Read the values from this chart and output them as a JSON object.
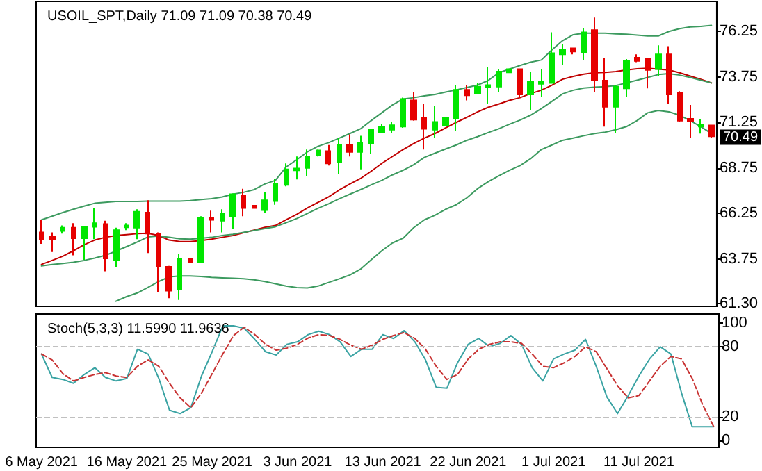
{
  "chart_data": [
    {
      "type": "candlestick",
      "title": "USOIL_SPT,Daily 71.09 71.09 70.38 70.49",
      "categories": [
        null,
        null,
        null,
        null,
        null,
        null,
        null,
        null,
        null,
        null,
        null,
        null,
        null,
        null,
        null,
        null,
        null,
        null,
        null,
        null,
        null,
        null,
        null,
        null,
        null,
        null,
        null,
        null,
        null,
        null,
        null,
        null,
        null,
        null,
        null,
        null,
        null,
        null,
        null,
        null,
        null,
        null,
        null,
        null,
        null,
        null,
        null,
        null,
        null,
        null,
        null,
        null,
        null,
        null,
        null,
        null,
        null,
        null,
        null,
        null,
        null,
        null,
        null,
        null
      ],
      "ohlc": [
        [
          65.21,
          65.9,
          64.58,
          64.84
        ],
        [
          64.96,
          65.21,
          64.13,
          64.84
        ],
        [
          65.29,
          65.59,
          65.14,
          65.47
        ],
        [
          65.47,
          65.72,
          63.95,
          64.89
        ],
        [
          64.89,
          65.54,
          63.7,
          65.54
        ],
        [
          65.52,
          66.55,
          64.84,
          65.72
        ],
        [
          65.67,
          65.85,
          63.07,
          63.78
        ],
        [
          63.7,
          65.47,
          63.32,
          65.34
        ],
        [
          65.49,
          65.72,
          65.34,
          65.59
        ],
        [
          65.47,
          66.48,
          64.84,
          66.35
        ],
        [
          66.3,
          66.98,
          64.08,
          65.14
        ],
        [
          65.14,
          65.21,
          61.93,
          63.32
        ],
        [
          63.32,
          63.37,
          61.6,
          62.01
        ],
        [
          62.06,
          64.03,
          61.5,
          63.78
        ],
        [
          63.78,
          63.78,
          63.57,
          63.57
        ],
        [
          63.57,
          66.1,
          63.57,
          66.02
        ],
        [
          66.02,
          66.4,
          65.21,
          65.9
        ],
        [
          65.85,
          66.48,
          65.21,
          66.22
        ],
        [
          66.1,
          67.36,
          65.42,
          67.31
        ],
        [
          67.23,
          67.61,
          66.1,
          66.55
        ],
        [
          66.68,
          66.68,
          66.55,
          66.55
        ],
        [
          66.43,
          67.41,
          66.3,
          66.98
        ],
        [
          66.93,
          68.17,
          66.73,
          67.87
        ],
        [
          67.82,
          69.0,
          67.74,
          68.67
        ],
        [
          68.62,
          69.38,
          68.12,
          68.72
        ],
        [
          68.75,
          69.76,
          68.3,
          69.38
        ],
        [
          69.43,
          69.76,
          69.38,
          69.71
        ],
        [
          69.68,
          70.01,
          68.88,
          69.0
        ],
        [
          69.05,
          70.39,
          68.42,
          70.01
        ],
        [
          70.01,
          70.59,
          69.38,
          69.63
        ],
        [
          69.63,
          70.52,
          68.67,
          70.14
        ],
        [
          70.09,
          70.9,
          69.51,
          70.85
        ],
        [
          70.72,
          71.15,
          70.69,
          71.02
        ],
        [
          70.85,
          71.28,
          70.69,
          71.1
        ],
        [
          71.02,
          72.61,
          70.95,
          72.54
        ],
        [
          72.46,
          72.92,
          71.35,
          71.4
        ],
        [
          71.53,
          72.29,
          69.76,
          70.9
        ],
        [
          70.85,
          72.16,
          70.39,
          71.28
        ],
        [
          71.1,
          71.53,
          71.1,
          71.53
        ],
        [
          71.45,
          73.3,
          70.77,
          73.04
        ],
        [
          73.04,
          73.3,
          72.46,
          72.74
        ],
        [
          72.84,
          73.42,
          72.79,
          73.22
        ],
        [
          73.17,
          74.31,
          72.29,
          73.3
        ],
        [
          73.22,
          74.18,
          72.92,
          74.05
        ],
        [
          74.0,
          74.18,
          74.0,
          74.18
        ],
        [
          74.18,
          74.18,
          72.61,
          72.79
        ],
        [
          72.79,
          74.05,
          71.91,
          73.47
        ],
        [
          73.37,
          74.18,
          72.66,
          73.47
        ],
        [
          73.42,
          76.2,
          73.42,
          75.06
        ],
        [
          74.99,
          75.57,
          74.43,
          75.24
        ],
        [
          75.32,
          75.32,
          74.99,
          75.14
        ],
        [
          75.11,
          76.45,
          74.68,
          76.2
        ],
        [
          76.33,
          77.01,
          72.92,
          73.55
        ],
        [
          73.55,
          74.81,
          71.02,
          72.11
        ],
        [
          72.11,
          73.3,
          70.69,
          73.22
        ],
        [
          73.12,
          74.73,
          72.66,
          74.63
        ],
        [
          74.81,
          74.99,
          74.56,
          74.63
        ],
        [
          74.73,
          74.81,
          73.12,
          74.13
        ],
        [
          74.18,
          75.49,
          73.8,
          74.99
        ],
        [
          74.99,
          75.44,
          72.29,
          72.79
        ],
        [
          72.87,
          72.97,
          71.28,
          71.35
        ],
        [
          71.45,
          72.21,
          70.39,
          71.33
        ],
        [
          71.02,
          71.45,
          70.64,
          71.15
        ],
        [
          71.09,
          71.09,
          70.38,
          70.49
        ]
      ],
      "colors": [
        "#e60000",
        "#e60000",
        "#00e600",
        "#e60000",
        "#00e600",
        "#00e600",
        "#e60000",
        "#00e600",
        "#00e600",
        "#00e600",
        "#e60000",
        "#e60000",
        "#e60000",
        "#00e600",
        "#e60000",
        "#00e600",
        "#e60000",
        "#00e600",
        "#00e600",
        "#e60000",
        "#e60000",
        "#00e600",
        "#00e600",
        "#00e600",
        "#00e600",
        "#00e600",
        "#00e600",
        "#e60000",
        "#00e600",
        "#e60000",
        "#00e600",
        "#00e600",
        "#00e600",
        "#00e600",
        "#00e600",
        "#e60000",
        "#e60000",
        "#00e600",
        "#00e600",
        "#00e600",
        "#e60000",
        "#00e600",
        "#00e600",
        "#00e600",
        "#00e600",
        "#e60000",
        "#00e600",
        "#00e600",
        "#00e600",
        "#00e600",
        "#e60000",
        "#00e600",
        "#e60000",
        "#e60000",
        "#00e600",
        "#00e600",
        "#e60000",
        "#e60000",
        "#00e600",
        "#e60000",
        "#e60000",
        "#e60000",
        "#00e600",
        "#e60000"
      ],
      "series": [
        {
          "type": "line",
          "color": "#3c9a5f",
          "values": [
            65.9,
            66.1,
            66.3,
            66.48,
            66.65,
            66.81,
            66.86,
            66.91,
            66.91,
            66.91,
            66.93,
            66.93,
            66.93,
            66.93,
            66.96,
            67.01,
            67.06,
            67.16,
            67.31,
            67.41,
            67.56,
            67.87,
            68.07,
            68.8,
            69.2,
            69.63,
            69.94,
            70.14,
            70.39,
            70.64,
            70.9,
            71.35,
            71.78,
            72.21,
            72.54,
            72.61,
            72.71,
            72.79,
            72.92,
            73.04,
            73.17,
            73.3,
            73.55,
            73.98,
            74.18,
            74.38,
            74.56,
            74.68,
            75.24,
            75.74,
            76.07,
            76.15,
            76.15,
            76.15,
            76.12,
            76.1,
            76.05,
            76.0,
            76.0,
            76.25,
            76.4,
            76.5,
            76.53,
            76.58
          ]
        },
        {
          "type": "line",
          "color": "#c00000",
          "values": [
            63.45,
            63.67,
            63.9,
            64.2,
            64.53,
            64.79,
            64.94,
            65.04,
            65.09,
            65.14,
            65.16,
            65.04,
            64.79,
            64.71,
            64.71,
            64.76,
            64.84,
            64.94,
            65.04,
            65.19,
            65.34,
            65.49,
            65.59,
            65.9,
            66.2,
            66.55,
            66.86,
            67.16,
            67.54,
            67.87,
            68.17,
            68.57,
            69.0,
            69.38,
            69.76,
            70.09,
            70.39,
            70.64,
            70.95,
            71.25,
            71.53,
            71.83,
            72.08,
            72.26,
            72.46,
            72.61,
            72.84,
            73.02,
            73.3,
            73.62,
            73.78,
            73.9,
            73.98,
            74.0,
            74.05,
            74.13,
            74.2,
            74.23,
            74.18,
            74.13,
            73.98,
            73.8,
            73.62,
            73.42
          ]
        },
        {
          "type": "line",
          "color": "#3c9a5f",
          "values": [
            63.37,
            63.45,
            63.5,
            63.57,
            63.67,
            63.8,
            63.95,
            64.18,
            64.43,
            64.68,
            64.96,
            65.01,
            64.94,
            64.86,
            64.84,
            64.89,
            64.94,
            65.04,
            65.11,
            65.21,
            65.32,
            65.42,
            65.52,
            65.74,
            65.97,
            66.25,
            66.53,
            66.78,
            67.06,
            67.31,
            67.56,
            67.82,
            68.07,
            68.37,
            68.62,
            68.93,
            69.33,
            69.56,
            69.79,
            70.01,
            70.27,
            70.47,
            70.69,
            70.9,
            71.15,
            71.38,
            71.65,
            72.01,
            72.41,
            72.82,
            73.02,
            73.14,
            73.19,
            73.22,
            73.27,
            73.42,
            73.57,
            73.72,
            73.88,
            73.93,
            73.85,
            73.72,
            73.57,
            73.42
          ]
        },
        {
          "type": "line",
          "color": "#3c9a5f",
          "values": [
            null,
            null,
            null,
            null,
            null,
            null,
            null,
            61.43,
            61.68,
            61.88,
            62.18,
            62.51,
            62.77,
            62.82,
            62.82,
            62.79,
            62.74,
            62.71,
            62.69,
            62.66,
            62.61,
            62.51,
            62.39,
            62.26,
            62.18,
            62.16,
            62.26,
            62.46,
            62.66,
            62.87,
            63.19,
            63.7,
            64.2,
            64.63,
            64.89,
            65.47,
            65.9,
            66.15,
            66.48,
            66.73,
            67.11,
            67.61,
            67.99,
            68.32,
            68.62,
            68.88,
            69.26,
            69.76,
            70.01,
            70.27,
            70.39,
            70.52,
            70.64,
            70.72,
            70.85,
            71.02,
            71.35,
            71.78,
            71.91,
            71.83,
            71.65,
            71.35,
            71.02,
            70.64
          ]
        }
      ],
      "ylim": [
        61.15,
        77.9
      ],
      "yticks": [
        {
          "value": 61.3,
          "label": "61.30"
        },
        63.75,
        66.25,
        68.75,
        71.25,
        73.75,
        76.25
      ],
      "tick_labels": "y",
      "marker": "none",
      "annotations": [
        {
          "text": "70.49",
          "y": 70.49
        }
      ]
    },
    {
      "type": "line",
      "title": "Stoch(5,3,3) 11.5990 11.9636",
      "categories": [
        "6 May 2021",
        null,
        null,
        null,
        null,
        null,
        null,
        null,
        "16 May 2021",
        null,
        null,
        null,
        null,
        null,
        null,
        null,
        "25 May 2021",
        null,
        null,
        null,
        null,
        null,
        null,
        null,
        "3 Jun 2021",
        null,
        null,
        null,
        null,
        null,
        null,
        null,
        "13 Jun 2021",
        null,
        null,
        null,
        null,
        null,
        null,
        null,
        "22 Jun 2021",
        null,
        null,
        null,
        null,
        null,
        null,
        null,
        "1 Jul 2021",
        null,
        null,
        null,
        null,
        null,
        null,
        null,
        "11 Jul 2021",
        null,
        null,
        null,
        null,
        null,
        null,
        null
      ],
      "series": [
        {
          "color": "#3aa3a3",
          "values": [
            73.8,
            53.8,
            52.1,
            48.8,
            56.3,
            62.1,
            53.8,
            50.8,
            52.9,
            77.9,
            73.8,
            52.9,
            25.8,
            22.9,
            27.9,
            55.0,
            75.8,
            97.9,
            97.9,
            95.8,
            86.3,
            75.8,
            72.9,
            82.1,
            84.2,
            90.4,
            93.3,
            90.4,
            84.2,
            71.7,
            77.9,
            77.9,
            90.4,
            87.1,
            93.8,
            84.2,
            68.8,
            45.4,
            44.6,
            66.3,
            82.1,
            87.1,
            80.0,
            82.9,
            89.6,
            82.1,
            62.1,
            50.8,
            69.6,
            73.8,
            77.1,
            86.3,
            63.3,
            37.1,
            22.9,
            38.3,
            55.0,
            69.6,
            80.0,
            73.8,
            40.4,
            11.6,
            11.6,
            11.599
          ]
        },
        {
          "color": "#c83232",
          "line_style": "dashed",
          "values": [
            73.8,
            68.8,
            57.1,
            50.8,
            53.8,
            56.3,
            57.9,
            55.0,
            53.8,
            63.3,
            68.8,
            63.3,
            48.8,
            36.3,
            27.9,
            40.4,
            57.1,
            73.8,
            89.6,
            96.7,
            90.4,
            82.1,
            77.1,
            78.8,
            82.1,
            87.5,
            90.4,
            89.6,
            86.3,
            81.3,
            77.9,
            81.3,
            86.3,
            89.6,
            92.1,
            87.1,
            77.9,
            63.3,
            52.1,
            56.3,
            69.6,
            77.9,
            82.1,
            84.2,
            84.2,
            82.9,
            73.8,
            63.3,
            62.1,
            66.3,
            71.7,
            80.0,
            75.8,
            61.3,
            46.7,
            36.3,
            38.3,
            50.8,
            63.3,
            71.7,
            69.6,
            52.9,
            30.0,
            11.9636
          ]
        }
      ],
      "ylim": [
        -6,
        108
      ],
      "yticks": [
        0,
        20,
        80,
        100
      ],
      "marker": "none",
      "ref_lines": [
        {
          "axis": "y",
          "value": 20,
          "color": "#c0c0c0",
          "line_style": "dashed"
        },
        {
          "axis": "y",
          "value": 80,
          "color": "#c0c0c0",
          "line_style": "dashed"
        }
      ]
    }
  ]
}
